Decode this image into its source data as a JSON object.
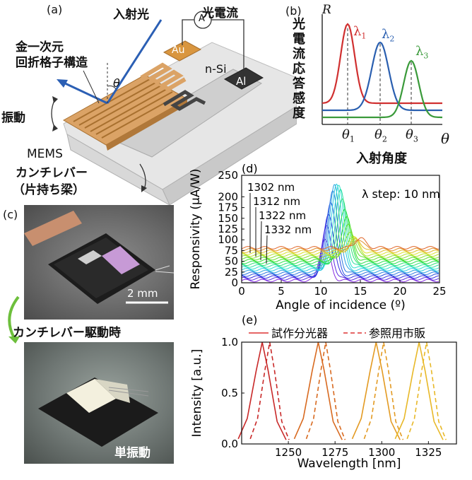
{
  "panel_a": {
    "label": "(a)",
    "incident_light": "入射光",
    "photocurrent": "光電流",
    "ammeter": "A",
    "au": "Au",
    "n_si": "n-Si",
    "al": "Al",
    "theta": "θ",
    "grating_line1": "金一次元",
    "grating_line2": "回折格子構造",
    "vibration": "振動",
    "mems_line1": "MEMS",
    "mems_line2": "カンチレバー",
    "mems_line3": "（片持ち梁）"
  },
  "panel_b": {
    "label": "(b)",
    "ylabel": "光電流応答感度",
    "yaxis_symbol": "R",
    "xlabel": "入射角度",
    "xaxis_symbol": "θ",
    "lambda1": "λ",
    "lambda1_sub": "1",
    "lambda2": "λ",
    "lambda2_sub": "2",
    "lambda3": "λ",
    "lambda3_sub": "3",
    "theta1": "θ",
    "theta1_sub": "1",
    "theta2": "θ",
    "theta2_sub": "2",
    "theta3": "θ",
    "theta3_sub": "3",
    "colors": {
      "lambda1": "#d03030",
      "lambda2": "#2a5fb0",
      "lambda3": "#3a9a3a"
    }
  },
  "panel_c": {
    "label": "(c)",
    "scale_bar": "2 mm",
    "caption_middle": "カンチレバー駆動時",
    "caption_bottom": "単振動"
  },
  "chart_data": [
    {
      "type": "line",
      "panel": "(d)",
      "xlabel": "Angle of incidence (º)",
      "ylabel": "Responsivity (µA/W)",
      "xlim": [
        0,
        25
      ],
      "ylim": [
        0,
        250
      ],
      "xticks": [
        "0",
        "5",
        "10",
        "15",
        "20",
        "25"
      ],
      "yticks": [
        "0",
        "25",
        "50",
        "75",
        "100",
        "125",
        "150",
        "175",
        "200",
        "250"
      ],
      "yticks_values": [
        0,
        25,
        50,
        75,
        100,
        125,
        150,
        175,
        200,
        250
      ],
      "annotation_step": "λ step: 10 nm",
      "wavelength_labels": [
        "1302 nm",
        "1312 nm",
        "1322 nm",
        "1332 nm"
      ],
      "series_count": 19,
      "peak_angle_first": 10.5,
      "peak_angle_last": 15,
      "peak_max": 222,
      "baseline_min": 5,
      "baseline_max": 90
    },
    {
      "type": "line",
      "panel": "(e)",
      "xlabel": "Wavelength [nm]",
      "ylabel": "Intensity [a.u.]",
      "xlim": [
        1225,
        1340
      ],
      "ylim": [
        0,
        1
      ],
      "xticks": [
        "1250",
        "1275",
        "1300",
        "1325"
      ],
      "xticks_values": [
        1250,
        1275,
        1300,
        1325
      ],
      "yticks": [
        "0.0",
        "0.5",
        "1.0"
      ],
      "yticks_values": [
        0,
        0.5,
        1
      ],
      "legend": [
        {
          "name": "試作分光器",
          "style": "solid"
        },
        {
          "name": "参照用市販",
          "style": "dashed"
        }
      ],
      "peaks": [
        1236,
        1266,
        1297,
        1320
      ],
      "reference_peaks": [
        1240,
        1270,
        1301,
        1324
      ],
      "series_colors": [
        "#c82828",
        "#d86a20",
        "#e39a22",
        "#e8b828"
      ]
    }
  ]
}
